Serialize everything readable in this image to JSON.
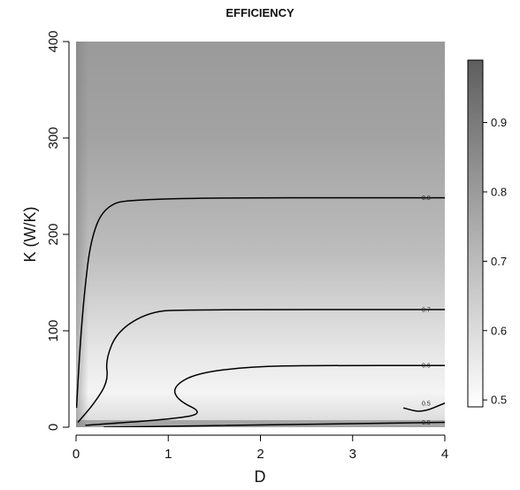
{
  "chart_data": {
    "type": "heatmap",
    "title": "EFFICIENCY",
    "xlabel": "D",
    "ylabel": "K (W/K)",
    "xlim": [
      0,
      4
    ],
    "ylim": [
      0,
      400
    ],
    "x_ticks": [
      "0",
      "1",
      "2",
      "3",
      "4"
    ],
    "y_ticks": [
      "0",
      "100",
      "200",
      "300",
      "400"
    ],
    "colorbar": {
      "range": [
        0.49,
        0.99
      ],
      "ticks": [
        "0.5",
        "0.6",
        "0.7",
        "0.8",
        "0.9"
      ],
      "low_color": "#ffffff",
      "high_color": "#5e5e5e"
    },
    "contours": [
      {
        "level": 0.8,
        "label": "0.8",
        "points": [
          [
            0.005,
            20
          ],
          [
            0.04,
            80
          ],
          [
            0.09,
            140
          ],
          [
            0.16,
            195
          ],
          [
            0.3,
            228
          ],
          [
            0.6,
            238
          ],
          [
            4.0,
            238
          ]
        ]
      },
      {
        "level": 0.7,
        "label": "0.7",
        "points": [
          [
            0.02,
            5
          ],
          [
            0.2,
            25
          ],
          [
            0.35,
            48
          ],
          [
            0.32,
            70
          ],
          [
            0.45,
            100
          ],
          [
            0.8,
            120
          ],
          [
            1.2,
            122
          ],
          [
            4.0,
            122
          ]
        ]
      },
      {
        "level": 0.6,
        "label": "0.6",
        "points": [
          [
            0.1,
            2
          ],
          [
            1.0,
            8
          ],
          [
            1.4,
            14
          ],
          [
            1.1,
            28
          ],
          [
            1.05,
            42
          ],
          [
            1.3,
            56
          ],
          [
            1.9,
            63
          ],
          [
            2.6,
            64
          ],
          [
            4.0,
            64
          ]
        ]
      },
      {
        "level": 0.5,
        "label": "0.5",
        "points": [
          [
            3.55,
            20
          ],
          [
            3.75,
            15
          ],
          [
            4.0,
            25
          ]
        ]
      },
      {
        "level": 0.9,
        "label": "0.9",
        "points": [
          [
            0.3,
            0
          ],
          [
            2.5,
            3
          ],
          [
            4.0,
            5
          ]
        ]
      }
    ]
  }
}
